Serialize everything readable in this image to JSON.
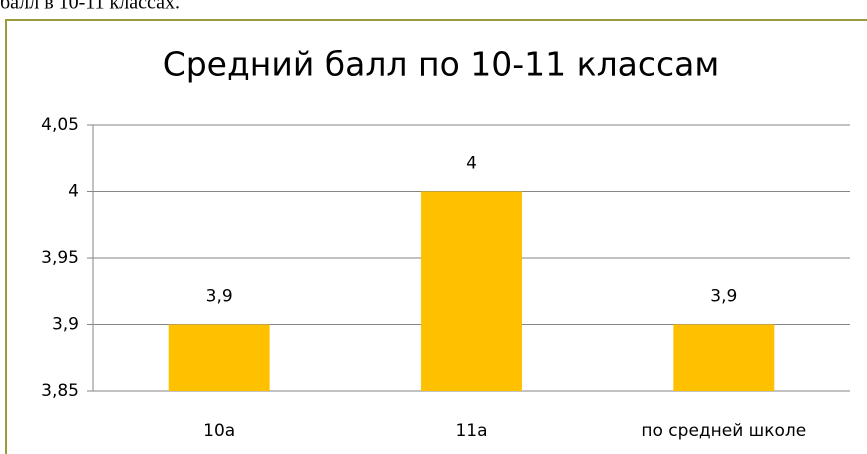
{
  "page_text": "балл в 10-11 классах.",
  "chart_data": {
    "type": "bar",
    "title": "Средний балл по 10-11 классам",
    "categories": [
      "10а",
      "11а",
      "по средней школе"
    ],
    "values": [
      3.9,
      4,
      3.9
    ],
    "value_labels": [
      "3,9",
      "4",
      "3,9"
    ],
    "color": "#ffc000",
    "ylim": [
      3.85,
      4.05
    ],
    "yticks": [
      {
        "value": 3.85,
        "label": "3,85"
      },
      {
        "value": 3.9,
        "label": "3,9"
      },
      {
        "value": 3.95,
        "label": "3,95"
      },
      4,
      {
        "value": 4.05,
        "label": "4,05"
      }
    ],
    "grid": true
  }
}
